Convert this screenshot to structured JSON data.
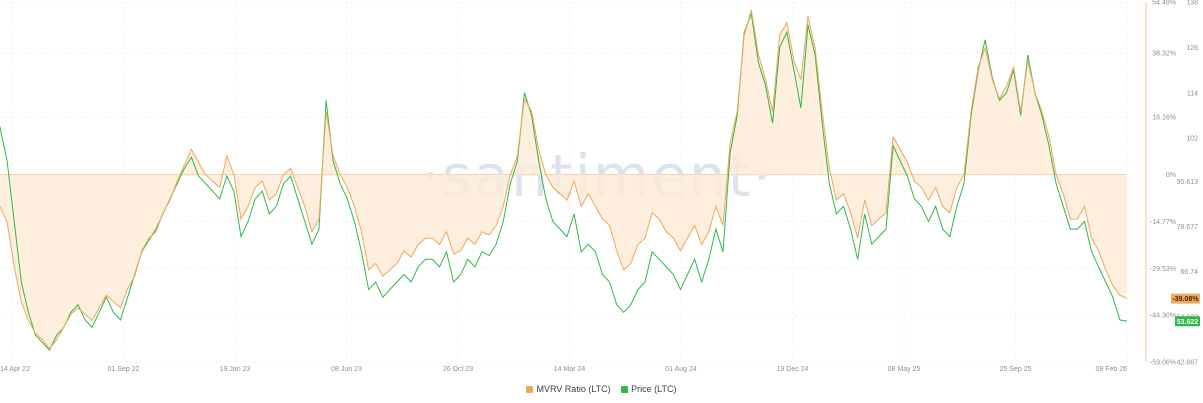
{
  "chart_data": {
    "type": "line",
    "watermark": "·santiment·",
    "x_ticks": [
      "14 Apr 22",
      "01 Sep 22",
      "19 Jan 23",
      "08 Jun 23",
      "26 Oct 23",
      "14 Mar 24",
      "01 Aug 24",
      "19 Dec 24",
      "08 May 25",
      "25 Sep 25",
      "09 Feb 26"
    ],
    "left_ticks": [],
    "mvrv_axis_ticks": [
      "54.48%",
      "38.32%",
      "18.16%",
      "0%",
      "-14.77%",
      "-29.53%",
      "-44.30%",
      "-59.06%"
    ],
    "mvrv_axis_values": [
      54.48,
      38.32,
      18.16,
      0,
      -14.77,
      -29.53,
      -44.3,
      -59.06
    ],
    "price_axis_ticks": [
      "138",
      "126",
      "114",
      "102",
      "90.613",
      "78.677",
      "66.74",
      "54.803",
      "42.867"
    ],
    "price_axis_values": [
      138,
      126,
      114,
      102,
      90.613,
      78.677,
      66.74,
      54.803,
      42.867
    ],
    "mvrv_ylim": [
      -59.06,
      54.48
    ],
    "price_ylim": [
      42.867,
      138
    ],
    "series": [
      {
        "name": "MVRV Ratio (LTC)",
        "color": "#f2a65a",
        "fill": "#fdebd8",
        "values": [
          -10,
          -15,
          -29,
          -40,
          -46,
          -50,
          -52,
          -55,
          -52,
          -48,
          -44,
          -42,
          -44,
          -46,
          -42,
          -38,
          -40,
          -42,
          -36,
          -32,
          -24,
          -20,
          -18,
          -12,
          -8,
          -2,
          3,
          8,
          4,
          0,
          -2,
          -4,
          6,
          0,
          -14,
          -10,
          -4,
          -2,
          -8,
          -6,
          0,
          2,
          -4,
          -10,
          -18,
          -14,
          20,
          6,
          0,
          -4,
          -10,
          -18,
          -30,
          -28,
          -32,
          -30,
          -28,
          -24,
          -26,
          -22,
          -20,
          -20,
          -22,
          -18,
          -25,
          -24,
          -20,
          -22,
          -18,
          -19,
          -16,
          -10,
          0,
          6,
          24,
          20,
          8,
          0,
          -4,
          -6,
          -8,
          -2,
          -10,
          -6,
          -10,
          -14,
          -16,
          -24,
          -30,
          -28,
          -22,
          -20,
          -12,
          -14,
          -18,
          -20,
          -24,
          -20,
          -16,
          -22,
          -18,
          -10,
          -16,
          10,
          20,
          44,
          52,
          38,
          30,
          20,
          44,
          48,
          36,
          30,
          50,
          40,
          20,
          2,
          -8,
          -6,
          -12,
          -20,
          -8,
          -16,
          -14,
          -12,
          12,
          8,
          4,
          -2,
          -4,
          -8,
          -4,
          -10,
          -12,
          -4,
          0,
          20,
          34,
          40,
          30,
          24,
          28,
          34,
          20,
          36,
          26,
          20,
          12,
          0,
          -6,
          -14,
          -14,
          -10,
          -20,
          -24,
          -30,
          -35,
          -38,
          -39.08
        ],
        "last_label": "-39.08%"
      },
      {
        "name": "Price (LTC)",
        "color": "#2fb84a",
        "values": [
          105,
          96,
          80,
          64,
          56,
          50,
          48,
          46,
          50,
          52,
          56,
          58,
          54,
          52,
          56,
          60,
          56,
          54,
          60,
          66,
          72,
          75,
          78,
          82,
          86,
          90,
          94,
          97,
          92,
          90,
          88,
          86,
          92,
          88,
          76,
          80,
          86,
          88,
          82,
          84,
          90,
          92,
          86,
          80,
          74,
          78,
          112,
          96,
          90,
          86,
          80,
          72,
          62,
          64,
          60,
          62,
          64,
          66,
          64,
          68,
          70,
          70,
          68,
          72,
          64,
          66,
          70,
          68,
          72,
          71,
          74,
          80,
          90,
          96,
          114,
          108,
          96,
          86,
          80,
          78,
          76,
          82,
          72,
          74,
          72,
          66,
          64,
          58,
          56,
          58,
          62,
          64,
          72,
          70,
          68,
          66,
          62,
          66,
          70,
          64,
          70,
          78,
          72,
          98,
          108,
          130,
          135,
          122,
          116,
          106,
          126,
          130,
          120,
          110,
          132,
          124,
          106,
          90,
          82,
          84,
          78,
          70,
          82,
          74,
          76,
          78,
          100,
          96,
          92,
          86,
          84,
          80,
          84,
          78,
          76,
          84,
          90,
          108,
          120,
          128,
          118,
          112,
          114,
          120,
          108,
          124,
          114,
          108,
          100,
          90,
          84,
          78,
          78,
          80,
          72,
          68,
          64,
          60,
          54,
          53.622
        ],
        "last_label": "53.622"
      }
    ],
    "xlabel": "",
    "ylabel": "",
    "grid": true,
    "legend": "bottom-center"
  },
  "colors": {
    "mvrv": "#f2a65a",
    "mvrv_fill": "#fdebd8",
    "price": "#2fb84a",
    "grid": "#eef0f3",
    "axis_text": "#8a8f99"
  }
}
